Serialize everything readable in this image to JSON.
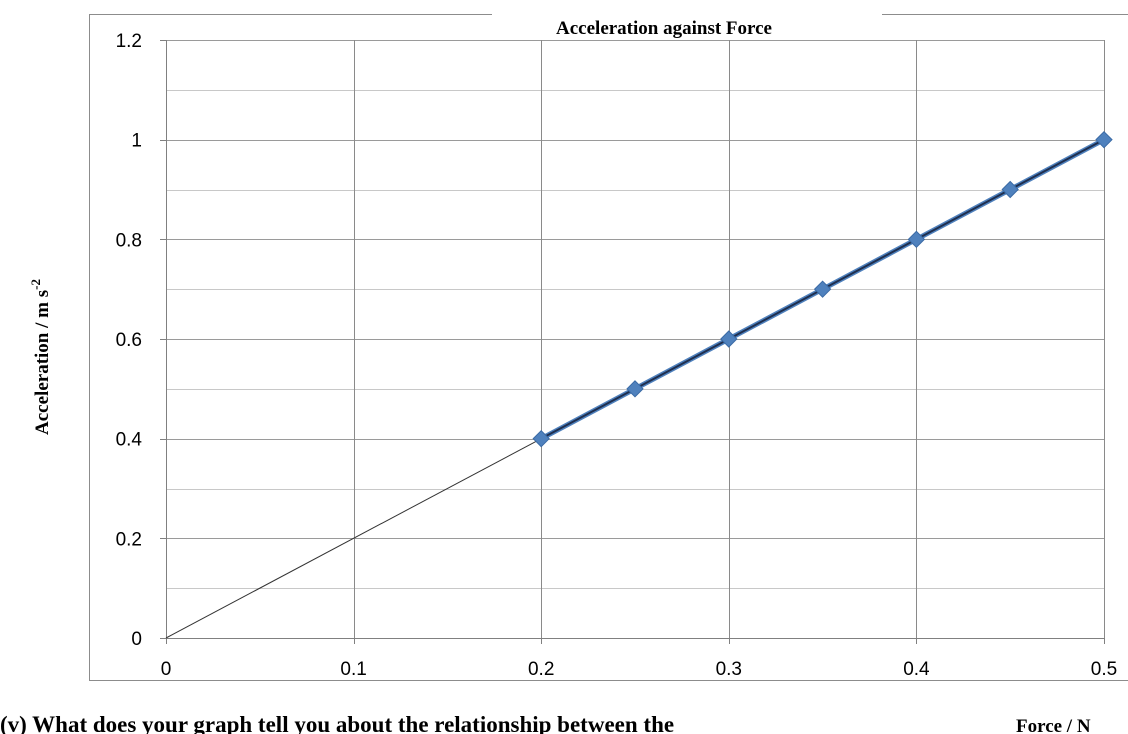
{
  "chart_data": {
    "type": "scatter",
    "title": "Acceleration against Force",
    "xlabel": "Force / N",
    "ylabel": "Acceleration / m s",
    "ylabel_superscript": "-2",
    "xlim": [
      0,
      0.5
    ],
    "ylim": [
      0,
      1.2
    ],
    "x_ticks": [
      "0",
      "0.1",
      "0.2",
      "0.3",
      "0.4",
      "0.5"
    ],
    "y_ticks": [
      "0",
      "0.2",
      "0.4",
      "0.6",
      "0.8",
      "1",
      "1.2"
    ],
    "grid": true,
    "marker_color": "#4F81BD",
    "series": [
      {
        "x": [
          0.2,
          0.25,
          0.3,
          0.35,
          0.4,
          0.45,
          0.5
        ],
        "y": [
          0.4,
          0.5,
          0.6,
          0.7,
          0.8,
          0.9,
          1.0
        ]
      }
    ],
    "best_fit_line": {
      "x": [
        0.2,
        0.5
      ],
      "y": [
        0.4,
        1.0
      ],
      "color": "#1F2F4F"
    },
    "extrapolation_line": {
      "x": [
        0,
        0.2
      ],
      "y": [
        0,
        0.4
      ],
      "color": "#333333"
    }
  },
  "question": {
    "text": "(v) What does your graph tell you about the relationship between the"
  }
}
